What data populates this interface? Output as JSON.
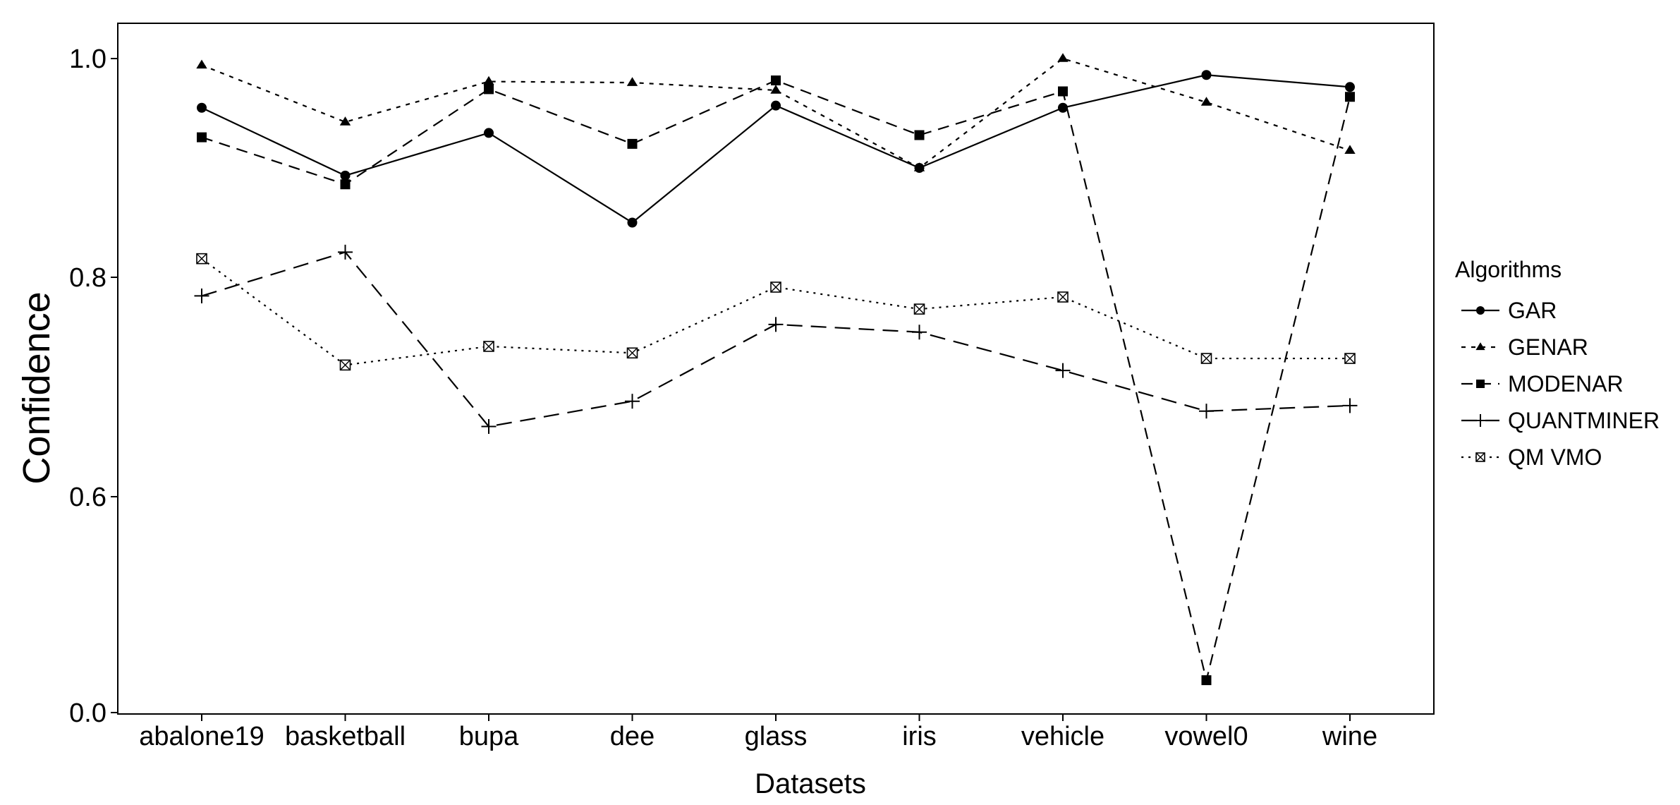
{
  "chart_data": {
    "type": "line",
    "xlabel": "Datasets",
    "ylabel": "Confidence",
    "categories": [
      "abalone19",
      "basketball",
      "bupa",
      "dee",
      "glass",
      "iris",
      "vehicle",
      "vowel0",
      "wine"
    ],
    "y_ticks": [
      0.0,
      0.6,
      0.8,
      1.0
    ],
    "y_tick_labels": [
      "0.0",
      "0.6",
      "0.8",
      "1.0"
    ],
    "y_scale": "broken",
    "y_scale_note": "Ticks 0.0, 0.6, 0.8 and 1.0 are equally spaced",
    "grid": false,
    "legend": {
      "title": "Algorithms",
      "placement": "right"
    },
    "series": [
      {
        "name": "GAR",
        "marker": "circle",
        "dash": "solid",
        "values": [
          0.955,
          0.893,
          0.932,
          0.85,
          0.957,
          0.9,
          0.955,
          0.985,
          0.974
        ]
      },
      {
        "name": "GENAR",
        "marker": "triangle",
        "dash": "dotted",
        "values": [
          0.994,
          0.942,
          0.979,
          0.978,
          0.971,
          0.9,
          1.0,
          0.96,
          0.916
        ]
      },
      {
        "name": "MODENAR",
        "marker": "square",
        "dash": "dashed",
        "values": [
          0.928,
          0.885,
          0.972,
          0.922,
          0.98,
          0.93,
          0.97,
          0.09,
          0.965
        ]
      },
      {
        "name": "QUANTMINER",
        "marker": "plus",
        "dash": "longdash",
        "values": [
          0.783,
          0.823,
          0.664,
          0.687,
          0.757,
          0.75,
          0.715,
          0.678,
          0.683
        ]
      },
      {
        "name": "QM_VMO",
        "label": "QM  VMO",
        "marker": "crossbox",
        "dash": "fine-dotted",
        "values": [
          0.817,
          0.72,
          0.737,
          0.731,
          0.791,
          0.771,
          0.782,
          0.726,
          0.726
        ]
      }
    ]
  }
}
